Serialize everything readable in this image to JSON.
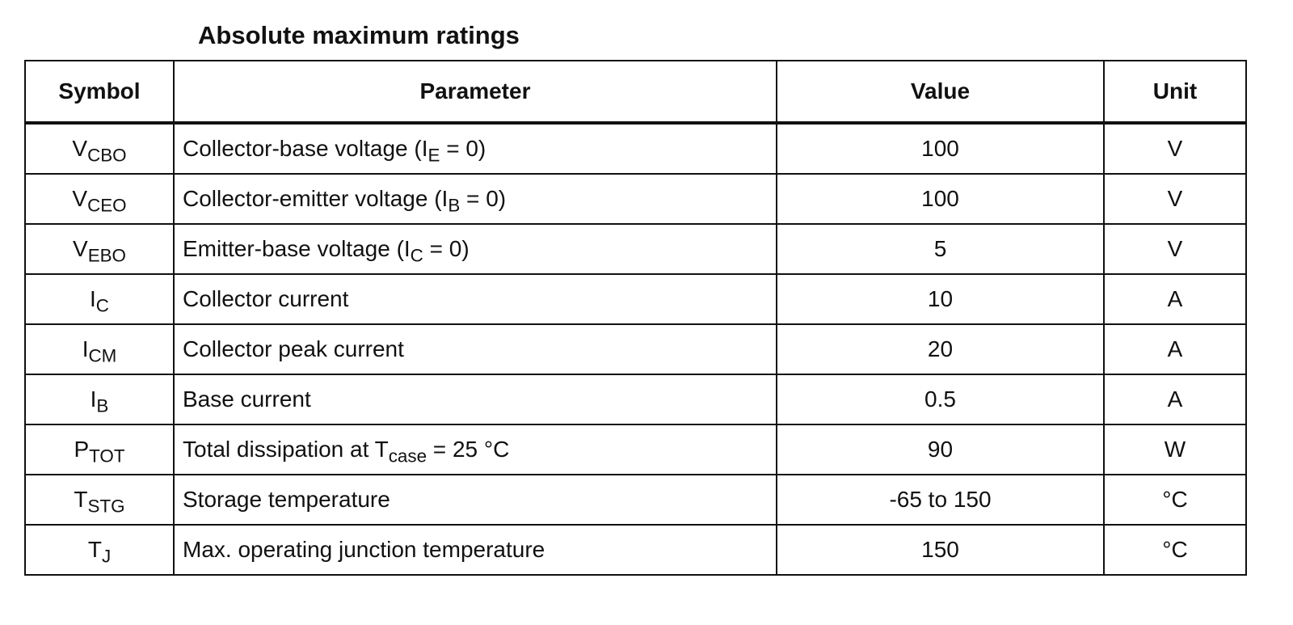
{
  "title": "Absolute maximum ratings",
  "table": {
    "header": [
      "Symbol",
      "Parameter",
      "Value",
      "Unit"
    ],
    "rows": [
      {
        "symbol": [
          "V",
          {
            "sub": "CBO"
          }
        ],
        "parameter": [
          "Collector-base voltage (I",
          {
            "sub": "E"
          },
          " = 0)"
        ],
        "value": 100,
        "unit": "V"
      },
      {
        "symbol": [
          "V",
          {
            "sub": "CEO"
          }
        ],
        "parameter": [
          "Collector-emitter voltage (I",
          {
            "sub": "B"
          },
          " = 0)"
        ],
        "value": 100,
        "unit": "V"
      },
      {
        "symbol": [
          "V",
          {
            "sub": "EBO"
          }
        ],
        "parameter": [
          "Emitter-base voltage (I",
          {
            "sub": "C"
          },
          " = 0)"
        ],
        "value": 5,
        "unit": "V"
      },
      {
        "symbol": [
          "I",
          {
            "sub": "C"
          }
        ],
        "parameter": [
          "Collector current"
        ],
        "value": 10,
        "unit": "A"
      },
      {
        "symbol": [
          "I",
          {
            "sub": "CM"
          }
        ],
        "parameter": [
          "Collector peak current"
        ],
        "value": 20,
        "unit": "A"
      },
      {
        "symbol": [
          "I",
          {
            "sub": "B"
          }
        ],
        "parameter": [
          "Base current"
        ],
        "value": 0.5,
        "unit": "A"
      },
      {
        "symbol": [
          "P",
          {
            "sub": "TOT"
          }
        ],
        "parameter": [
          "Total dissipation at T",
          {
            "sub": "case"
          },
          " = 25 °C"
        ],
        "value": 90,
        "unit": "W"
      },
      {
        "symbol": [
          "T",
          {
            "sub": "STG"
          }
        ],
        "parameter": [
          "Storage temperature"
        ],
        "value": "-65 to 150",
        "unit": "°C"
      },
      {
        "symbol": [
          "T",
          {
            "sub": "J"
          }
        ],
        "parameter": [
          "Max. operating junction temperature"
        ],
        "value": 150,
        "unit": "°C"
      }
    ]
  }
}
